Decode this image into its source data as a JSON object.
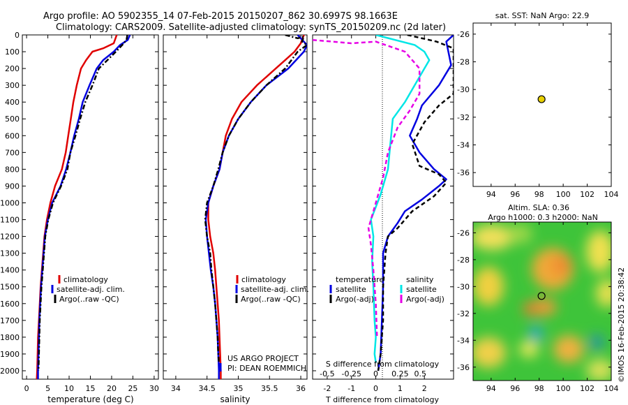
{
  "header": {
    "line1": "Argo profile: AO 5902355_14 07-Feb-2015 20150207_862 30.6997S 98.1663E",
    "line2": "Climatology: CARS2009. Satellite-adjusted climatology: synTS_20150209.nc (2d later)"
  },
  "colors": {
    "climatology": "#e00000",
    "satellite": "#0000e0",
    "argo": "#000000",
    "sat_salinity": "#00e6e6",
    "argo_salinity": "#e600e6"
  },
  "chart_data": [
    {
      "type": "line",
      "id": "temperature",
      "xlabel": "temperature (deg C)",
      "xlim": [
        -1,
        31
      ],
      "ylim": [
        0,
        2050
      ],
      "y_reversed": true,
      "xticks": [
        0,
        5,
        10,
        15,
        20,
        25,
        30
      ],
      "yticks": [
        0,
        100,
        200,
        300,
        400,
        500,
        600,
        700,
        800,
        900,
        1000,
        1100,
        1200,
        1300,
        1400,
        1500,
        1600,
        1700,
        1800,
        1900,
        2000
      ],
      "legend": [
        "climatology",
        "satellite-adj. clim.",
        "Argo(..raw -QC)"
      ],
      "series": [
        {
          "name": "climatology",
          "color": "#e00000",
          "style": "solid",
          "points": [
            [
              21.2,
              0
            ],
            [
              20.5,
              50
            ],
            [
              18,
              80
            ],
            [
              15.5,
              100
            ],
            [
              14,
              150
            ],
            [
              12.8,
              200
            ],
            [
              11.8,
              300
            ],
            [
              11,
              400
            ],
            [
              10.4,
              500
            ],
            [
              9.8,
              600
            ],
            [
              9.2,
              700
            ],
            [
              8.3,
              800
            ],
            [
              6.7,
              900
            ],
            [
              5.6,
              1000
            ],
            [
              4.8,
              1100
            ],
            [
              4.2,
              1200
            ],
            [
              3.9,
              1300
            ],
            [
              3.6,
              1400
            ],
            [
              3.3,
              1500
            ],
            [
              3.1,
              1600
            ],
            [
              2.9,
              1700
            ],
            [
              2.7,
              1800
            ],
            [
              2.6,
              1900
            ],
            [
              2.5,
              2000
            ],
            [
              2.4,
              2050
            ]
          ]
        },
        {
          "name": "satellite-adj. clim.",
          "color": "#0000e0",
          "style": "solid",
          "points": [
            [
              24.3,
              0
            ],
            [
              23.8,
              30
            ],
            [
              22,
              60
            ],
            [
              20.5,
              100
            ],
            [
              18,
              150
            ],
            [
              16.5,
              200
            ],
            [
              14.8,
              300
            ],
            [
              13.2,
              400
            ],
            [
              12.3,
              500
            ],
            [
              11.2,
              600
            ],
            [
              10.3,
              700
            ],
            [
              9.3,
              800
            ],
            [
              8,
              900
            ],
            [
              6,
              1000
            ],
            [
              5,
              1100
            ],
            [
              4.3,
              1200
            ],
            [
              4,
              1300
            ],
            [
              3.7,
              1400
            ],
            [
              3.4,
              1500
            ],
            [
              3.2,
              1600
            ],
            [
              3,
              1700
            ],
            [
              2.9,
              1800
            ],
            [
              2.8,
              1900
            ],
            [
              2.7,
              2000
            ],
            [
              2.7,
              2050
            ]
          ]
        },
        {
          "name": "Argo(..raw -QC)",
          "color": "#000000",
          "style": "dashdot",
          "points": [
            [
              23.7,
              0
            ],
            [
              23.5,
              30
            ],
            [
              22.5,
              60
            ],
            [
              21,
              100
            ],
            [
              19,
              150
            ],
            [
              17,
              200
            ],
            [
              15.5,
              300
            ],
            [
              13.8,
              400
            ],
            [
              12.6,
              500
            ],
            [
              11.5,
              600
            ],
            [
              10.3,
              700
            ],
            [
              9.6,
              800
            ],
            [
              8.1,
              900
            ],
            [
              6.2,
              1000
            ],
            [
              5.1,
              1100
            ],
            [
              4.4,
              1200
            ],
            [
              4.1,
              1300
            ],
            [
              3.8,
              1400
            ],
            [
              3.5,
              1500
            ],
            [
              3.3,
              1600
            ],
            [
              3.1,
              1700
            ],
            [
              3,
              1800
            ],
            [
              2.9,
              1900
            ],
            [
              2.8,
              2000
            ]
          ]
        }
      ]
    },
    {
      "type": "line",
      "id": "salinity",
      "xlabel": "salinity",
      "xlim": [
        33.8,
        36.1
      ],
      "ylim": [
        0,
        2050
      ],
      "y_reversed": true,
      "xticks": [
        34,
        34.5,
        35,
        35.5,
        36
      ],
      "xticklabels": [
        "34",
        "34.5",
        "35",
        "35.5",
        "36"
      ],
      "legend": [
        "climatology",
        "satellite-adj. clim.",
        "Argo(..raw -QC)"
      ],
      "series": [
        {
          "name": "climatology",
          "color": "#e00000",
          "style": "solid",
          "points": [
            [
              36.05,
              0
            ],
            [
              36.0,
              50
            ],
            [
              35.9,
              100
            ],
            [
              35.75,
              150
            ],
            [
              35.6,
              200
            ],
            [
              35.3,
              300
            ],
            [
              35.05,
              400
            ],
            [
              34.9,
              500
            ],
            [
              34.8,
              600
            ],
            [
              34.75,
              700
            ],
            [
              34.7,
              800
            ],
            [
              34.6,
              900
            ],
            [
              34.52,
              1000
            ],
            [
              34.52,
              1100
            ],
            [
              34.55,
              1200
            ],
            [
              34.6,
              1300
            ],
            [
              34.63,
              1400
            ],
            [
              34.65,
              1500
            ],
            [
              34.67,
              1600
            ],
            [
              34.69,
              1700
            ],
            [
              34.7,
              1800
            ],
            [
              34.71,
              1900
            ],
            [
              34.72,
              2000
            ],
            [
              34.72,
              2050
            ]
          ]
        },
        {
          "name": "satellite-adj. clim.",
          "color": "#0000e0",
          "style": "solid",
          "points": [
            [
              35.95,
              0
            ],
            [
              36.05,
              40
            ],
            [
              36.1,
              60
            ],
            [
              36.05,
              100
            ],
            [
              35.8,
              200
            ],
            [
              35.45,
              300
            ],
            [
              35.2,
              400
            ],
            [
              35.0,
              500
            ],
            [
              34.85,
              600
            ],
            [
              34.75,
              700
            ],
            [
              34.7,
              800
            ],
            [
              34.6,
              900
            ],
            [
              34.52,
              1000
            ],
            [
              34.48,
              1100
            ],
            [
              34.5,
              1200
            ],
            [
              34.53,
              1300
            ],
            [
              34.56,
              1400
            ],
            [
              34.6,
              1500
            ],
            [
              34.63,
              1600
            ],
            [
              34.65,
              1700
            ],
            [
              34.67,
              1800
            ],
            [
              34.68,
              1900
            ],
            [
              34.69,
              2000
            ],
            [
              34.69,
              2050
            ]
          ]
        },
        {
          "name": "Argo(..raw -QC)",
          "color": "#000000",
          "style": "dashdot",
          "points": [
            [
              35.75,
              0
            ],
            [
              35.95,
              20
            ],
            [
              36.05,
              10
            ],
            [
              36.02,
              40
            ],
            [
              36.1,
              60
            ],
            [
              35.95,
              100
            ],
            [
              35.75,
              200
            ],
            [
              35.45,
              300
            ],
            [
              35.2,
              400
            ],
            [
              35.0,
              500
            ],
            [
              34.85,
              600
            ],
            [
              34.75,
              700
            ],
            [
              34.68,
              800
            ],
            [
              34.6,
              900
            ],
            [
              34.5,
              1000
            ],
            [
              34.47,
              1100
            ],
            [
              34.5,
              1200
            ],
            [
              34.55,
              1300
            ],
            [
              34.57,
              1400
            ],
            [
              34.6,
              1500
            ],
            [
              34.63,
              1600
            ],
            [
              34.65,
              1700
            ],
            [
              34.67,
              1800
            ],
            [
              34.68,
              1900
            ],
            [
              34.69,
              1950
            ]
          ]
        }
      ]
    },
    {
      "type": "line",
      "id": "difference",
      "xlabel": "T difference from climatology",
      "x2label": "S difference from climatology",
      "xlim": [
        -2.6,
        3.2
      ],
      "ylim": [
        0,
        2050
      ],
      "y_reversed": true,
      "xticks": [
        -2,
        -1,
        0,
        1,
        2
      ],
      "x2ticks": [
        "-0.5",
        "-0.25",
        "0",
        "0.25",
        "0.5"
      ],
      "legend_temperature": "temperature",
      "legend_salinity": "salinity",
      "legend": [
        "satellite",
        "Argo(-adj)",
        "satellite",
        "Argo(-adj)"
      ],
      "series": [
        {
          "name": "temperature satellite",
          "color": "#0000e0",
          "style": "solid",
          "points": [
            [
              3.2,
              0
            ],
            [
              2.9,
              40
            ],
            [
              3.1,
              180
            ],
            [
              2.6,
              300
            ],
            [
              1.9,
              420
            ],
            [
              1.7,
              500
            ],
            [
              1.4,
              600
            ],
            [
              1.8,
              700
            ],
            [
              2.4,
              800
            ],
            [
              2.9,
              860
            ],
            [
              2.6,
              900
            ],
            [
              1.9,
              980
            ],
            [
              1.2,
              1050
            ],
            [
              0.9,
              1120
            ],
            [
              0.5,
              1200
            ],
            [
              0.3,
              1300
            ],
            [
              0.3,
              1500
            ],
            [
              0.25,
              1700
            ],
            [
              0.2,
              1900
            ],
            [
              0.1,
              2000
            ]
          ]
        },
        {
          "name": "temperature Argo(-adj)",
          "color": "#000000",
          "style": "dashed",
          "points": [
            [
              1.3,
              0
            ],
            [
              2.5,
              40
            ],
            [
              3.2,
              80
            ],
            [
              3.2,
              350
            ],
            [
              2.6,
              420
            ],
            [
              2.0,
              520
            ],
            [
              1.5,
              650
            ],
            [
              1.8,
              780
            ],
            [
              2.6,
              830
            ],
            [
              2.9,
              880
            ],
            [
              2.4,
              960
            ],
            [
              1.5,
              1050
            ],
            [
              0.9,
              1150
            ],
            [
              0.5,
              1200
            ],
            [
              0.4,
              1300
            ],
            [
              0.3,
              1500
            ],
            [
              0.3,
              1700
            ],
            [
              0.2,
              1900
            ],
            [
              0.1,
              2000
            ]
          ]
        },
        {
          "name": "salinity satellite",
          "color": "#00e6e6",
          "style": "solid",
          "points": [
            [
              0,
              0
            ],
            [
              1.6,
              60
            ],
            [
              2.0,
              100
            ],
            [
              2.2,
              150
            ],
            [
              1.8,
              250
            ],
            [
              1.2,
              400
            ],
            [
              0.7,
              500
            ],
            [
              0.6,
              650
            ],
            [
              0.5,
              800
            ],
            [
              0.2,
              950
            ],
            [
              -0.2,
              1100
            ],
            [
              -0.1,
              1200
            ],
            [
              -0.15,
              1350
            ],
            [
              -0.1,
              1500
            ],
            [
              -0.05,
              1700
            ],
            [
              0,
              1800
            ],
            [
              -0.05,
              1900
            ],
            [
              0.0,
              1950
            ]
          ]
        },
        {
          "name": "salinity Argo(-adj)",
          "color": "#e600e6",
          "style": "dashed",
          "points": [
            [
              -2.6,
              30
            ],
            [
              -1,
              50
            ],
            [
              0,
              40
            ],
            [
              1.2,
              100
            ],
            [
              1.8,
              200
            ],
            [
              1.8,
              350
            ],
            [
              1.4,
              450
            ],
            [
              0.9,
              550
            ],
            [
              0.5,
              700
            ],
            [
              0.3,
              850
            ],
            [
              0.0,
              1000
            ],
            [
              -0.3,
              1150
            ],
            [
              -0.2,
              1250
            ],
            [
              -0.1,
              1400
            ],
            [
              0,
              1600
            ],
            [
              0.05,
              1800
            ]
          ]
        }
      ]
    },
    {
      "type": "scatter",
      "id": "location",
      "title": "sat. SST: NaN Argo: 22.9",
      "xlim": [
        92.5,
        104
      ],
      "ylim": [
        -37,
        -25.2
      ],
      "xticks": [
        94,
        96,
        98,
        100,
        102,
        104
      ],
      "yticks": [
        -26,
        -28,
        -30,
        -32,
        -34,
        -36
      ],
      "points": [
        [
          98.2,
          -30.7
        ]
      ]
    },
    {
      "type": "heatmap",
      "id": "sla",
      "title_line1": "Altim. SLA: 0.36",
      "title_line2": "Argo h1000: 0.3 h2000: NaN",
      "xlim": [
        92.5,
        104
      ],
      "ylim": [
        -37,
        -25.2
      ],
      "xticks": [
        94,
        96,
        98,
        100,
        102,
        104
      ],
      "yticks": [
        -26,
        -28,
        -30,
        -32,
        -34,
        -36
      ],
      "points": [
        [
          98.2,
          -30.7
        ]
      ]
    }
  ],
  "footer": {
    "credit": "©IMOS 16-Feb-2015 20:38:42"
  },
  "project": {
    "line1": "US ARGO PROJECT",
    "line2": "PI: DEAN ROEMMICH"
  }
}
